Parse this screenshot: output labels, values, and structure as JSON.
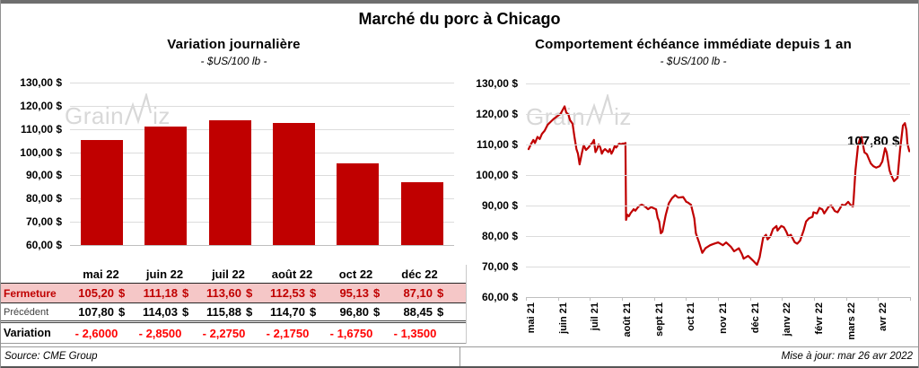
{
  "title": "Marché du porc à Chicago",
  "watermark": {
    "part1": "Grain",
    "part2": "iz"
  },
  "colors": {
    "series_red": "#C00000",
    "variation_red": "#FF0000",
    "fermeture_bg": "#F5C7C7",
    "grid": "#DCDCDC",
    "axis": "#BFBFBF",
    "watermark_gray": "#D8D8D8"
  },
  "footer": {
    "source": "Source: CME Group",
    "updated": "Mise à jour: mar 26 avr 2022"
  },
  "chart_data": [
    {
      "type": "bar",
      "title": "Variation  journalière",
      "subtitle": "- $US/100 lb -",
      "categories": [
        "mai 22",
        "juin 22",
        "juil 22",
        "août 22",
        "oct 22",
        "déc 22"
      ],
      "values": [
        105.2,
        111.18,
        113.6,
        112.53,
        95.13,
        87.1
      ],
      "ylabel": "",
      "xlabel": "",
      "ylim": [
        60,
        130
      ],
      "ytick_step": 10,
      "ytick_format": "fr-currency",
      "grid": true,
      "legend": false
    },
    {
      "type": "line",
      "title": "Comportement  échéance  immédiate  depuis 1 an",
      "subtitle": "- $US/100 lb -",
      "x_labels": [
        "mai 21",
        "juin 21",
        "juil 21",
        "août 21",
        "sept 21",
        "oct 21",
        "nov 21",
        "déc 21",
        "janv 22",
        "févr 22",
        "mars 22",
        "avr 22"
      ],
      "ylim": [
        60,
        130
      ],
      "ytick_step": 10,
      "ytick_format": "fr-currency",
      "grid": true,
      "legend": false,
      "annotation": "107,80 $",
      "last_value": 107.8,
      "points": [
        [
          0,
          108.5
        ],
        [
          0.08,
          110.2
        ],
        [
          0.15,
          111.5
        ],
        [
          0.2,
          110.5
        ],
        [
          0.28,
          112.5
        ],
        [
          0.35,
          111.8
        ],
        [
          0.42,
          113.5
        ],
        [
          0.5,
          114.5
        ],
        [
          0.6,
          116.5
        ],
        [
          0.7,
          117.5
        ],
        [
          0.8,
          118.5
        ],
        [
          0.9,
          119.3
        ],
        [
          1.0,
          120
        ],
        [
          1.08,
          121.5
        ],
        [
          1.13,
          122.5
        ],
        [
          1.18,
          120.5
        ],
        [
          1.25,
          119.8
        ],
        [
          1.3,
          118
        ],
        [
          1.38,
          116.8
        ],
        [
          1.44,
          112.5
        ],
        [
          1.5,
          108.5
        ],
        [
          1.55,
          107
        ],
        [
          1.6,
          103.5
        ],
        [
          1.68,
          107.5
        ],
        [
          1.73,
          109.8
        ],
        [
          1.8,
          108.2
        ],
        [
          1.88,
          109
        ],
        [
          1.95,
          110
        ],
        [
          2.0,
          110.5
        ],
        [
          2.05,
          111.5
        ],
        [
          2.1,
          107.5
        ],
        [
          2.15,
          108.5
        ],
        [
          2.2,
          110
        ],
        [
          2.25,
          109
        ],
        [
          2.3,
          107
        ],
        [
          2.35,
          108
        ],
        [
          2.4,
          108.5
        ],
        [
          2.5,
          107.5
        ],
        [
          2.55,
          108.5
        ],
        [
          2.6,
          107
        ],
        [
          2.65,
          108
        ],
        [
          2.7,
          109.5
        ],
        [
          2.75,
          109
        ],
        [
          2.8,
          109.8
        ],
        [
          2.85,
          110.3
        ],
        [
          2.9,
          110
        ],
        [
          2.95,
          110.3
        ],
        [
          3.0,
          110.3
        ],
        [
          3.04,
          110.5
        ],
        [
          3.06,
          85.3
        ],
        [
          3.1,
          87
        ],
        [
          3.15,
          86.5
        ],
        [
          3.2,
          87.5
        ],
        [
          3.3,
          88.8
        ],
        [
          3.35,
          88.3
        ],
        [
          3.45,
          89.7
        ],
        [
          3.55,
          90.3
        ],
        [
          3.65,
          89.7
        ],
        [
          3.75,
          88.8
        ],
        [
          3.85,
          89.5
        ],
        [
          3.95,
          89
        ],
        [
          4.0,
          88.8
        ],
        [
          4.05,
          86
        ],
        [
          4.1,
          84.8
        ],
        [
          4.15,
          80.9
        ],
        [
          4.2,
          81.4
        ],
        [
          4.3,
          86.8
        ],
        [
          4.4,
          90.7
        ],
        [
          4.5,
          92.4
        ],
        [
          4.6,
          93.4
        ],
        [
          4.7,
          92.6
        ],
        [
          4.85,
          92.8
        ],
        [
          4.95,
          91.2
        ],
        [
          5.0,
          91
        ],
        [
          5.1,
          90.2
        ],
        [
          5.2,
          85.8
        ],
        [
          5.25,
          80.9
        ],
        [
          5.35,
          77.9
        ],
        [
          5.45,
          74.5
        ],
        [
          5.55,
          76
        ],
        [
          5.7,
          77
        ],
        [
          5.8,
          77.4
        ],
        [
          5.95,
          77.9
        ],
        [
          6.1,
          77
        ],
        [
          6.2,
          77.9
        ],
        [
          6.35,
          76.5
        ],
        [
          6.45,
          75
        ],
        [
          6.6,
          76
        ],
        [
          6.7,
          74
        ],
        [
          6.75,
          72.6
        ],
        [
          6.89,
          73.5
        ],
        [
          7.03,
          72.1
        ],
        [
          7.17,
          70.6
        ],
        [
          7.25,
          73
        ],
        [
          7.36,
          79.4
        ],
        [
          7.45,
          80.4
        ],
        [
          7.5,
          78.9
        ],
        [
          7.59,
          79.9
        ],
        [
          7.67,
          82.3
        ],
        [
          7.78,
          83.3
        ],
        [
          7.81,
          81.8
        ],
        [
          7.93,
          83.3
        ],
        [
          8.01,
          82.9
        ],
        [
          8.09,
          81.4
        ],
        [
          8.15,
          79.9
        ],
        [
          8.23,
          80.4
        ],
        [
          8.35,
          78
        ],
        [
          8.43,
          77.5
        ],
        [
          8.52,
          78.5
        ],
        [
          8.63,
          81.8
        ],
        [
          8.71,
          84.8
        ],
        [
          8.8,
          85.8
        ],
        [
          8.91,
          86.3
        ],
        [
          8.94,
          87.8
        ],
        [
          9.05,
          87.4
        ],
        [
          9.13,
          89.2
        ],
        [
          9.22,
          88.7
        ],
        [
          9.28,
          87.4
        ],
        [
          9.36,
          88.7
        ],
        [
          9.42,
          89.7
        ],
        [
          9.5,
          90
        ],
        [
          9.61,
          88.2
        ],
        [
          9.7,
          87.8
        ],
        [
          9.78,
          89.2
        ],
        [
          9.84,
          90.3
        ],
        [
          9.92,
          90
        ],
        [
          10.03,
          91.2
        ],
        [
          10.12,
          90
        ],
        [
          10.18,
          89.7
        ],
        [
          10.2,
          91.8
        ],
        [
          10.26,
          101.5
        ],
        [
          10.34,
          109.7
        ],
        [
          10.4,
          111.8
        ],
        [
          10.45,
          112.4
        ],
        [
          10.54,
          107.4
        ],
        [
          10.62,
          106.8
        ],
        [
          10.68,
          105.3
        ],
        [
          10.74,
          103.8
        ],
        [
          10.82,
          102.9
        ],
        [
          10.91,
          102.4
        ],
        [
          11.02,
          102.9
        ],
        [
          11.1,
          104.4
        ],
        [
          11.19,
          108.8
        ],
        [
          11.24,
          107.4
        ],
        [
          11.33,
          101.5
        ],
        [
          11.38,
          100
        ],
        [
          11.47,
          98
        ],
        [
          11.58,
          99.1
        ],
        [
          11.66,
          108.3
        ],
        [
          11.75,
          116.2
        ],
        [
          11.81,
          117
        ],
        [
          11.86,
          114.7
        ],
        [
          11.89,
          110.3
        ],
        [
          11.95,
          107.8
        ]
      ]
    }
  ],
  "table": {
    "header": [
      "mai 22",
      "juin 22",
      "juil 22",
      "août 22",
      "oct 22",
      "déc 22"
    ],
    "rows": [
      {
        "label": "Fermeture",
        "values": [
          "105,20",
          "111,18",
          "113,60",
          "112,53",
          "95,13",
          "87,10"
        ],
        "unit": "$"
      },
      {
        "label": "Précédent",
        "values": [
          "107,80",
          "114,03",
          "115,88",
          "114,70",
          "96,80",
          "88,45"
        ],
        "unit": "$"
      },
      {
        "label": "Variation",
        "values": [
          "- 2,6000",
          "- 2,8500",
          "- 2,2750",
          "- 2,1750",
          "- 1,6750",
          "- 1,3500"
        ],
        "unit": ""
      }
    ]
  }
}
